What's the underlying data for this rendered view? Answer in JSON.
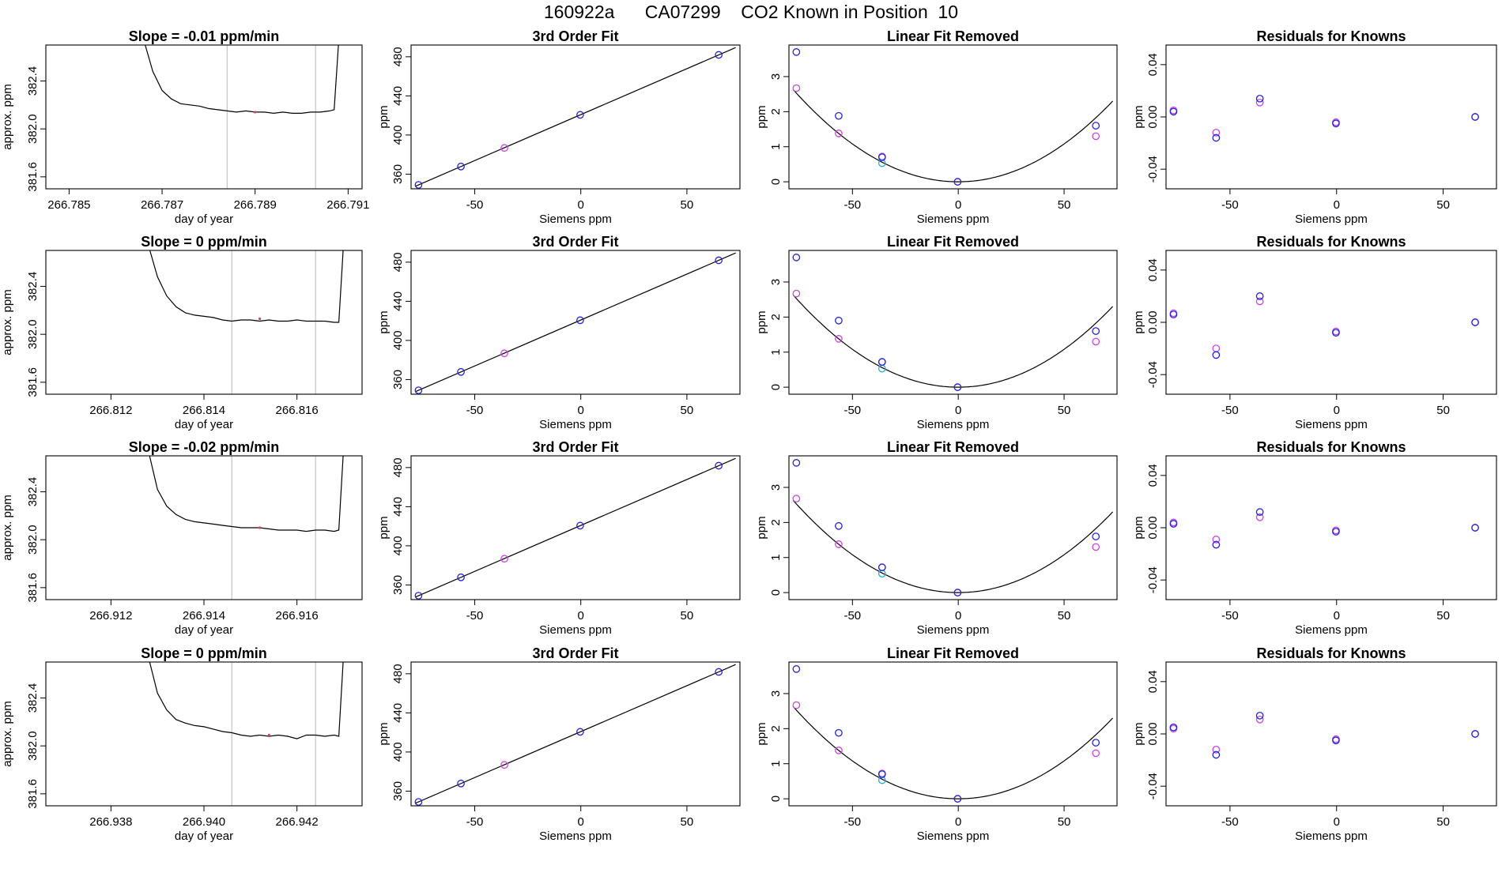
{
  "title": "160922a      CA07299    CO2 Known in Position  10",
  "colors": {
    "axis": "#000000",
    "trace": "#000000",
    "window_line": "#c8c8c8",
    "trace_marker": "#e04040",
    "fit_line": "#000000",
    "fit_points": "#2222dd",
    "raw_points": "#cc44dd",
    "alt_points": "#22aadd"
  },
  "chart_data": [
    {
      "type": "line",
      "title": "Slope =  -0.01  ppm/min",
      "xlabel": "day of year",
      "ylabel": "approx. ppm",
      "xlim": [
        266.7845,
        266.7913
      ],
      "ylim": [
        381.5,
        382.7
      ],
      "xticks": [
        266.785,
        266.787,
        266.789,
        266.791
      ],
      "xtick_labels": [
        "266.785",
        "266.787",
        "266.789",
        "266.791"
      ],
      "yticks": [
        381.6,
        382.0,
        382.4
      ],
      "ytick_labels": [
        "381.6",
        "382.0",
        "382.4"
      ],
      "vlines": [
        266.7884,
        266.7903
      ],
      "x": [
        266.7866,
        266.7868,
        266.787,
        266.7872,
        266.7874,
        266.7876,
        266.7878,
        266.788,
        266.7882,
        266.7884,
        266.7886,
        266.7888,
        266.789,
        266.7892,
        266.7894,
        266.7896,
        266.7898,
        266.79,
        266.7902,
        266.7904,
        266.7906,
        266.7907,
        266.7908
      ],
      "y": [
        382.75,
        382.48,
        382.32,
        382.25,
        382.21,
        382.2,
        382.19,
        382.17,
        382.16,
        382.15,
        382.14,
        382.15,
        382.14,
        382.14,
        382.13,
        382.14,
        382.13,
        382.13,
        382.14,
        382.14,
        382.15,
        382.16,
        382.75
      ],
      "marker": [
        266.789,
        382.14
      ]
    },
    {
      "type": "scatter",
      "title": "3rd Order Fit",
      "xlabel": "Siemens ppm",
      "ylabel": "ppm",
      "xlim": [
        -80,
        75
      ],
      "ylim": [
        345,
        492
      ],
      "xticks": [
        -50,
        0,
        50
      ],
      "xtick_labels": [
        "-50",
        "0",
        "50"
      ],
      "yticks": [
        360,
        400,
        440,
        480
      ],
      "ytick_labels": [
        "360",
        "400",
        "440",
        "480"
      ],
      "line": [
        [
          -78,
          347.6
        ],
        [
          73,
          489.4
        ]
      ],
      "points_fit": [
        [
          -76.5,
          349.0
        ],
        [
          -56.5,
          367.8
        ],
        [
          -0.3,
          420.6
        ],
        [
          65,
          481.9
        ]
      ],
      "points_raw": [
        [
          -36,
          386.8
        ]
      ]
    },
    {
      "type": "scatter",
      "title": "Linear Fit Removed",
      "xlabel": "Siemens ppm",
      "ylabel": "ppm",
      "xlim": [
        -80,
        75
      ],
      "ylim": [
        -0.2,
        3.9
      ],
      "xticks": [
        -50,
        0,
        50
      ],
      "xtick_labels": [
        "-50",
        "0",
        "50"
      ],
      "yticks": [
        0,
        1,
        2,
        3
      ],
      "ytick_labels": [
        "0",
        "1",
        "2",
        "3"
      ],
      "curve_coef": [
        0.000432,
        0.0
      ],
      "points_fit": [
        [
          -76.5,
          3.7
        ],
        [
          -56.5,
          1.88
        ],
        [
          -36,
          0.7
        ],
        [
          -0.3,
          0.0
        ],
        [
          65,
          1.6
        ]
      ],
      "points_raw": [
        [
          -76.5,
          2.67
        ],
        [
          -56.5,
          1.38
        ],
        [
          -36,
          0.72
        ],
        [
          -0.3,
          0.0
        ],
        [
          65,
          1.3
        ]
      ],
      "points_alt": [
        [
          -36,
          0.53
        ]
      ]
    },
    {
      "type": "scatter",
      "title": "Residuals for Knowns",
      "xlabel": "Siemens ppm",
      "ylabel": "ppm",
      "xlim": [
        -80,
        75
      ],
      "ylim": [
        -0.055,
        0.055
      ],
      "xticks": [
        -50,
        0,
        50
      ],
      "xtick_labels": [
        "-50",
        "0",
        "50"
      ],
      "yticks": [
        -0.04,
        0.0,
        0.04
      ],
      "ytick_labels": [
        "-0.04",
        "0.00",
        "0.04"
      ],
      "points_fit": [
        [
          -76.5,
          0.004
        ],
        [
          -56.5,
          -0.016
        ],
        [
          -36,
          0.014
        ],
        [
          -0.3,
          -0.005
        ],
        [
          65,
          0.0
        ]
      ],
      "points_raw": [
        [
          -76.5,
          0.005
        ],
        [
          -56.5,
          -0.012
        ],
        [
          -36,
          0.011
        ],
        [
          -0.3,
          -0.004
        ],
        [
          65,
          0.0
        ]
      ]
    },
    {
      "type": "line",
      "title": "Slope =  0  ppm/min",
      "xlabel": "day of year",
      "ylabel": "approx. ppm",
      "xlim": [
        266.8106,
        266.8174
      ],
      "ylim": [
        381.5,
        382.7
      ],
      "xticks": [
        266.812,
        266.814,
        266.816
      ],
      "xtick_labels": [
        "266.812",
        "266.814",
        "266.816"
      ],
      "yticks": [
        381.6,
        382.0,
        382.4
      ],
      "ytick_labels": [
        "381.6",
        "382.0",
        "382.4"
      ],
      "vlines": [
        266.8146,
        266.8164
      ],
      "x": [
        266.8128,
        266.813,
        266.8132,
        266.8134,
        266.8136,
        266.8138,
        266.814,
        266.8142,
        266.8144,
        266.8146,
        266.8148,
        266.815,
        266.8152,
        266.8154,
        266.8156,
        266.8158,
        266.816,
        266.8162,
        266.8164,
        266.8166,
        266.8168,
        266.8169,
        266.817
      ],
      "y": [
        382.75,
        382.48,
        382.32,
        382.23,
        382.18,
        382.16,
        382.15,
        382.14,
        382.12,
        382.11,
        382.12,
        382.12,
        382.11,
        382.12,
        382.11,
        382.11,
        382.12,
        382.11,
        382.11,
        382.11,
        382.1,
        382.1,
        382.75
      ],
      "marker": [
        266.8152,
        382.13
      ]
    },
    {
      "type": "scatter",
      "title": "3rd Order Fit",
      "xlabel": "Siemens ppm",
      "ylabel": "ppm",
      "xlim": [
        -80,
        75
      ],
      "ylim": [
        345,
        492
      ],
      "xticks": [
        -50,
        0,
        50
      ],
      "xtick_labels": [
        "-50",
        "0",
        "50"
      ],
      "yticks": [
        360,
        400,
        440,
        480
      ],
      "ytick_labels": [
        "360",
        "400",
        "440",
        "480"
      ],
      "line": [
        [
          -78,
          347.6
        ],
        [
          73,
          489.4
        ]
      ],
      "points_fit": [
        [
          -76.5,
          349.0
        ],
        [
          -56.5,
          367.8
        ],
        [
          -0.3,
          420.6
        ],
        [
          65,
          481.9
        ]
      ],
      "points_raw": [
        [
          -36,
          386.8
        ]
      ]
    },
    {
      "type": "scatter",
      "title": "Linear Fit Removed",
      "xlabel": "Siemens ppm",
      "ylabel": "ppm",
      "xlim": [
        -80,
        75
      ],
      "ylim": [
        -0.2,
        3.9
      ],
      "xticks": [
        -50,
        0,
        50
      ],
      "xtick_labels": [
        "-50",
        "0",
        "50"
      ],
      "yticks": [
        0,
        1,
        2,
        3
      ],
      "ytick_labels": [
        "0",
        "1",
        "2",
        "3"
      ],
      "curve_coef": [
        0.000432,
        0.0
      ],
      "points_fit": [
        [
          -76.5,
          3.7
        ],
        [
          -56.5,
          1.9
        ],
        [
          -36,
          0.72
        ],
        [
          -0.3,
          0.0
        ],
        [
          65,
          1.6
        ]
      ],
      "points_raw": [
        [
          -76.5,
          2.67
        ],
        [
          -56.5,
          1.38
        ],
        [
          -36,
          0.72
        ],
        [
          -0.3,
          0.0
        ],
        [
          65,
          1.3
        ]
      ],
      "points_alt": [
        [
          -36,
          0.53
        ]
      ]
    },
    {
      "type": "scatter",
      "title": "Residuals for Knowns",
      "xlabel": "Siemens ppm",
      "ylabel": "ppm",
      "xlim": [
        -80,
        75
      ],
      "ylim": [
        -0.055,
        0.055
      ],
      "xticks": [
        -50,
        0,
        50
      ],
      "xtick_labels": [
        "-50",
        "0",
        "50"
      ],
      "yticks": [
        -0.04,
        0.0,
        0.04
      ],
      "ytick_labels": [
        "-0.04",
        "0.00",
        "0.04"
      ],
      "points_fit": [
        [
          -76.5,
          0.006
        ],
        [
          -56.5,
          -0.025
        ],
        [
          -36,
          0.02
        ],
        [
          -0.3,
          -0.008
        ],
        [
          65,
          0.0
        ]
      ],
      "points_raw": [
        [
          -76.5,
          0.007
        ],
        [
          -56.5,
          -0.02
        ],
        [
          -36,
          0.016
        ],
        [
          -0.3,
          -0.007
        ],
        [
          65,
          0.0
        ]
      ]
    },
    {
      "type": "line",
      "title": "Slope =  -0.02  ppm/min",
      "xlabel": "day of year",
      "ylabel": "approx. ppm",
      "xlim": [
        266.9106,
        266.9174
      ],
      "ylim": [
        381.5,
        382.7
      ],
      "xticks": [
        266.912,
        266.914,
        266.916
      ],
      "xtick_labels": [
        "266.912",
        "266.914",
        "266.916"
      ],
      "yticks": [
        381.6,
        382.0,
        382.4
      ],
      "ytick_labels": [
        "381.6",
        "382.0",
        "382.4"
      ],
      "vlines": [
        266.9146,
        266.9164
      ],
      "x": [
        266.9128,
        266.913,
        266.9132,
        266.9134,
        266.9136,
        266.9138,
        266.914,
        266.9142,
        266.9144,
        266.9146,
        266.9148,
        266.915,
        266.9152,
        266.9154,
        266.9156,
        266.9158,
        266.916,
        266.9162,
        266.9164,
        266.9166,
        266.9168,
        266.9169,
        266.917
      ],
      "y": [
        382.75,
        382.42,
        382.28,
        382.21,
        382.17,
        382.15,
        382.14,
        382.13,
        382.12,
        382.11,
        382.1,
        382.1,
        382.1,
        382.09,
        382.08,
        382.08,
        382.08,
        382.07,
        382.08,
        382.08,
        382.07,
        382.08,
        382.75
      ],
      "marker": [
        266.9152,
        382.1
      ]
    },
    {
      "type": "scatter",
      "title": "3rd Order Fit",
      "xlabel": "Siemens ppm",
      "ylabel": "ppm",
      "xlim": [
        -80,
        75
      ],
      "ylim": [
        345,
        492
      ],
      "xticks": [
        -50,
        0,
        50
      ],
      "xtick_labels": [
        "-50",
        "0",
        "50"
      ],
      "yticks": [
        360,
        400,
        440,
        480
      ],
      "ytick_labels": [
        "360",
        "400",
        "440",
        "480"
      ],
      "line": [
        [
          -78,
          347.6
        ],
        [
          73,
          489.4
        ]
      ],
      "points_fit": [
        [
          -76.5,
          349.0
        ],
        [
          -56.5,
          367.8
        ],
        [
          -0.3,
          420.6
        ],
        [
          65,
          481.9
        ]
      ],
      "points_raw": [
        [
          -36,
          386.8
        ]
      ]
    },
    {
      "type": "scatter",
      "title": "Linear Fit Removed",
      "xlabel": "Siemens ppm",
      "ylabel": "ppm",
      "xlim": [
        -80,
        75
      ],
      "ylim": [
        -0.2,
        3.9
      ],
      "xticks": [
        -50,
        0,
        50
      ],
      "xtick_labels": [
        "-50",
        "0",
        "50"
      ],
      "yticks": [
        0,
        1,
        2,
        3
      ],
      "ytick_labels": [
        "0",
        "1",
        "2",
        "3"
      ],
      "curve_coef": [
        0.000432,
        0.0
      ],
      "points_fit": [
        [
          -76.5,
          3.7
        ],
        [
          -56.5,
          1.9
        ],
        [
          -36,
          0.72
        ],
        [
          -0.3,
          0.0
        ],
        [
          65,
          1.6
        ]
      ],
      "points_raw": [
        [
          -76.5,
          2.68
        ],
        [
          -56.5,
          1.38
        ],
        [
          -36,
          0.72
        ],
        [
          -0.3,
          0.0
        ],
        [
          65,
          1.3
        ]
      ],
      "points_alt": [
        [
          -36,
          0.54
        ]
      ]
    },
    {
      "type": "scatter",
      "title": "Residuals for Knowns",
      "xlabel": "Siemens ppm",
      "ylabel": "ppm",
      "xlim": [
        -80,
        75
      ],
      "ylim": [
        -0.055,
        0.055
      ],
      "xticks": [
        -50,
        0,
        50
      ],
      "xtick_labels": [
        "-50",
        "0",
        "50"
      ],
      "yticks": [
        -0.04,
        0.0,
        0.04
      ],
      "ytick_labels": [
        "-0.04",
        "0.00",
        "0.04"
      ],
      "points_fit": [
        [
          -76.5,
          0.003
        ],
        [
          -56.5,
          -0.013
        ],
        [
          -36,
          0.012
        ],
        [
          -0.3,
          -0.003
        ],
        [
          65,
          0.0
        ]
      ],
      "points_raw": [
        [
          -76.5,
          0.004
        ],
        [
          -56.5,
          -0.009
        ],
        [
          -36,
          0.008
        ],
        [
          -0.3,
          -0.002
        ],
        [
          65,
          0.0
        ]
      ]
    },
    {
      "type": "line",
      "title": "Slope =  0  ppm/min",
      "xlabel": "day of year",
      "ylabel": "approx. ppm",
      "xlim": [
        266.9366,
        266.9434
      ],
      "ylim": [
        381.5,
        382.7
      ],
      "xticks": [
        266.938,
        266.94,
        266.942
      ],
      "xtick_labels": [
        "266.938",
        "266.940",
        "266.942"
      ],
      "yticks": [
        381.6,
        382.0,
        382.4
      ],
      "ytick_labels": [
        "381.6",
        "382.0",
        "382.4"
      ],
      "vlines": [
        266.9406,
        266.9424
      ],
      "x": [
        266.9388,
        266.939,
        266.9392,
        266.9394,
        266.9396,
        266.9398,
        266.94,
        266.9402,
        266.9404,
        266.9406,
        266.9408,
        266.941,
        266.9412,
        266.9414,
        266.9416,
        266.9418,
        266.942,
        266.9422,
        266.9424,
        266.9426,
        266.9428,
        266.9429,
        266.943
      ],
      "y": [
        382.75,
        382.44,
        382.3,
        382.22,
        382.19,
        382.17,
        382.16,
        382.14,
        382.12,
        382.11,
        382.09,
        382.08,
        382.09,
        382.08,
        382.09,
        382.08,
        382.06,
        382.09,
        382.09,
        382.08,
        382.09,
        382.08,
        382.75
      ],
      "marker": [
        266.9414,
        382.09
      ]
    },
    {
      "type": "scatter",
      "title": "3rd Order Fit",
      "xlabel": "Siemens ppm",
      "ylabel": "ppm",
      "xlim": [
        -80,
        75
      ],
      "ylim": [
        345,
        492
      ],
      "xticks": [
        -50,
        0,
        50
      ],
      "xtick_labels": [
        "-50",
        "0",
        "50"
      ],
      "yticks": [
        360,
        400,
        440,
        480
      ],
      "ytick_labels": [
        "360",
        "400",
        "440",
        "480"
      ],
      "line": [
        [
          -78,
          347.6
        ],
        [
          73,
          489.4
        ]
      ],
      "points_fit": [
        [
          -76.5,
          349.0
        ],
        [
          -56.5,
          367.8
        ],
        [
          -0.3,
          420.6
        ],
        [
          65,
          481.9
        ]
      ],
      "points_raw": [
        [
          -36,
          386.8
        ]
      ]
    },
    {
      "type": "scatter",
      "title": "Linear Fit Removed",
      "xlabel": "Siemens ppm",
      "ylabel": "ppm",
      "xlim": [
        -80,
        75
      ],
      "ylim": [
        -0.2,
        3.9
      ],
      "xticks": [
        -50,
        0,
        50
      ],
      "xtick_labels": [
        "-50",
        "0",
        "50"
      ],
      "yticks": [
        0,
        1,
        2,
        3
      ],
      "ytick_labels": [
        "0",
        "1",
        "2",
        "3"
      ],
      "curve_coef": [
        0.000432,
        0.0
      ],
      "points_fit": [
        [
          -76.5,
          3.7
        ],
        [
          -56.5,
          1.88
        ],
        [
          -36,
          0.7
        ],
        [
          -0.3,
          0.0
        ],
        [
          65,
          1.6
        ]
      ],
      "points_raw": [
        [
          -76.5,
          2.67
        ],
        [
          -56.5,
          1.38
        ],
        [
          -36,
          0.72
        ],
        [
          -0.3,
          0.0
        ],
        [
          65,
          1.3
        ]
      ],
      "points_alt": [
        [
          -36,
          0.53
        ]
      ]
    },
    {
      "type": "scatter",
      "title": "Residuals for Knowns",
      "xlabel": "Siemens ppm",
      "ylabel": "ppm",
      "xlim": [
        -80,
        75
      ],
      "ylim": [
        -0.055,
        0.055
      ],
      "xticks": [
        -50,
        0,
        50
      ],
      "xtick_labels": [
        "-50",
        "0",
        "50"
      ],
      "yticks": [
        -0.04,
        0.0,
        0.04
      ],
      "ytick_labels": [
        "-0.04",
        "0.00",
        "0.04"
      ],
      "points_fit": [
        [
          -76.5,
          0.005
        ],
        [
          -56.5,
          -0.016
        ],
        [
          -36,
          0.014
        ],
        [
          -0.3,
          -0.005
        ],
        [
          65,
          0.0
        ]
      ],
      "points_raw": [
        [
          -76.5,
          0.004
        ],
        [
          -56.5,
          -0.012
        ],
        [
          -36,
          0.011
        ],
        [
          -0.3,
          -0.004
        ],
        [
          65,
          0.0
        ]
      ]
    }
  ]
}
